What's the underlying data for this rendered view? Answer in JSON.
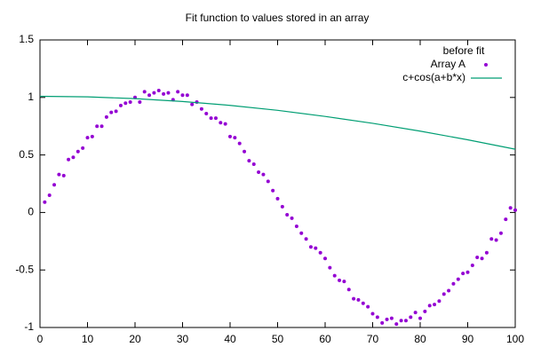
{
  "chart_data": {
    "type": "scatter",
    "title": "Fit function to values stored in an array",
    "legend_title": "before fit",
    "legend": "top-right",
    "xlim": [
      0,
      100
    ],
    "ylim": [
      -1,
      1.5
    ],
    "xticks": [
      0,
      10,
      20,
      30,
      40,
      50,
      60,
      70,
      80,
      90,
      100
    ],
    "yticks": [
      -1,
      -0.5,
      0,
      0.5,
      1,
      1.5
    ],
    "series": [
      {
        "name": "Array A",
        "color": "#9400d3",
        "style": "points",
        "x": [
          1,
          2,
          3,
          4,
          5,
          6,
          7,
          8,
          9,
          10,
          11,
          12,
          13,
          14,
          15,
          16,
          17,
          18,
          19,
          20,
          21,
          22,
          23,
          24,
          25,
          26,
          27,
          28,
          29,
          30,
          31,
          32,
          33,
          34,
          35,
          36,
          37,
          38,
          39,
          40,
          41,
          42,
          43,
          44,
          45,
          46,
          47,
          48,
          49,
          50,
          51,
          52,
          53,
          54,
          55,
          56,
          57,
          58,
          59,
          60,
          61,
          62,
          63,
          64,
          65,
          66,
          67,
          68,
          69,
          70,
          71,
          72,
          73,
          74,
          75,
          76,
          77,
          78,
          79,
          80,
          81,
          82,
          83,
          84,
          85,
          86,
          87,
          88,
          89,
          90,
          91,
          92,
          93,
          94,
          95,
          96,
          97,
          98,
          99,
          100
        ],
        "values": [
          0.09,
          0.15,
          0.24,
          0.33,
          0.32,
          0.46,
          0.48,
          0.53,
          0.56,
          0.65,
          0.66,
          0.75,
          0.75,
          0.83,
          0.87,
          0.88,
          0.93,
          0.95,
          0.96,
          1.0,
          0.96,
          1.05,
          1.02,
          1.04,
          1.06,
          1.03,
          1.04,
          0.98,
          1.05,
          1.02,
          1.02,
          0.94,
          0.96,
          0.9,
          0.86,
          0.82,
          0.82,
          0.78,
          0.77,
          0.66,
          0.65,
          0.6,
          0.53,
          0.45,
          0.42,
          0.35,
          0.33,
          0.27,
          0.19,
          0.12,
          0.05,
          -0.02,
          -0.05,
          -0.12,
          -0.18,
          -0.23,
          -0.3,
          -0.31,
          -0.35,
          -0.4,
          -0.48,
          -0.55,
          -0.59,
          -0.6,
          -0.67,
          -0.75,
          -0.76,
          -0.79,
          -0.82,
          -0.88,
          -0.91,
          -0.96,
          -0.93,
          -0.92,
          -0.97,
          -0.94,
          -0.94,
          -0.91,
          -0.87,
          -0.92,
          -0.86,
          -0.81,
          -0.8,
          -0.77,
          -0.71,
          -0.68,
          -0.62,
          -0.58,
          -0.53,
          -0.52,
          -0.46,
          -0.39,
          -0.4,
          -0.35,
          -0.23,
          -0.24,
          -0.18,
          -0.06,
          0.04,
          0.02
        ]
      },
      {
        "name": "c+cos(a+b*x)",
        "color": "#009e73",
        "style": "line",
        "x": [
          0,
          10,
          20,
          30,
          40,
          50,
          60,
          70,
          80,
          90,
          100
        ],
        "values": [
          1.01,
          1.005,
          0.99,
          0.965,
          0.931,
          0.888,
          0.835,
          0.775,
          0.707,
          0.632,
          0.55
        ]
      }
    ]
  }
}
